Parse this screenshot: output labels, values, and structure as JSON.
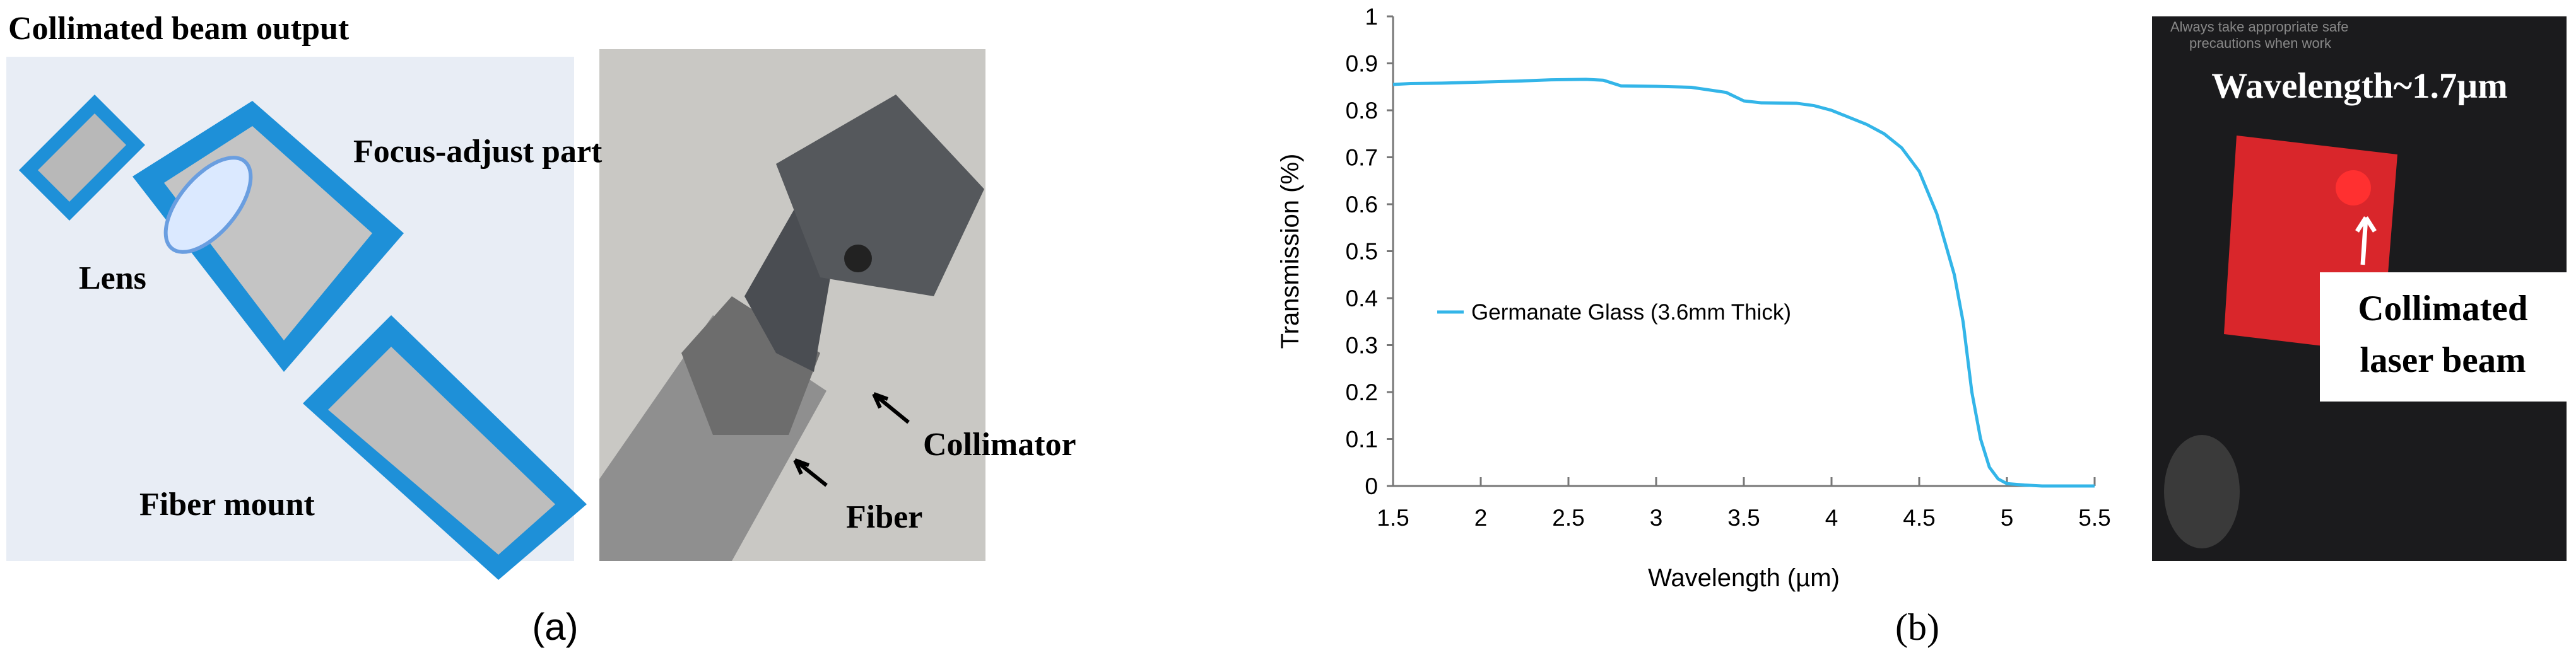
{
  "panel_a": {
    "labels": [
      "Collimated beam output",
      "Focus-adjust part",
      "Lens",
      "Fiber mount",
      "Collimator",
      "Fiber"
    ],
    "caption": "(a)"
  },
  "panel_b": {
    "photo_labels": [
      "Wavelength~1.7µm",
      "Collimated",
      "laser beam"
    ],
    "sign_text": [
      "Always take appropriate safe",
      "precautions when work"
    ],
    "caption": "(b)"
  },
  "chart_data": {
    "type": "line",
    "x_label": "Wavelength (µm)",
    "y_label": "Transmission (%)",
    "x": [
      1.5,
      1.6,
      1.8,
      2.0,
      2.2,
      2.4,
      2.6,
      2.7,
      2.8,
      3.0,
      3.2,
      3.4,
      3.5,
      3.6,
      3.8,
      3.9,
      4.0,
      4.1,
      4.2,
      4.3,
      4.4,
      4.5,
      4.6,
      4.7,
      4.75,
      4.8,
      4.85,
      4.9,
      4.95,
      5.0,
      5.1,
      5.2,
      5.5
    ],
    "series": [
      {
        "name": "Germanate Glass (3.6mm Thick)",
        "color": "#33b5e8",
        "values": [
          0.855,
          0.857,
          0.858,
          0.86,
          0.862,
          0.865,
          0.866,
          0.864,
          0.852,
          0.851,
          0.849,
          0.838,
          0.82,
          0.816,
          0.815,
          0.81,
          0.8,
          0.785,
          0.77,
          0.75,
          0.72,
          0.67,
          0.58,
          0.45,
          0.35,
          0.2,
          0.1,
          0.04,
          0.015,
          0.005,
          0.002,
          0,
          0
        ]
      }
    ],
    "xlim": [
      1.5,
      5.5
    ],
    "xticks": [
      1.5,
      2,
      2.5,
      3,
      3.5,
      4,
      4.5,
      5,
      5.5
    ],
    "ylim": [
      0,
      1
    ],
    "yticks": [
      0,
      0.1,
      0.2,
      0.3,
      0.4,
      0.5,
      0.6,
      0.7,
      0.8,
      0.9,
      1
    ],
    "grid": false,
    "legend": "left"
  }
}
